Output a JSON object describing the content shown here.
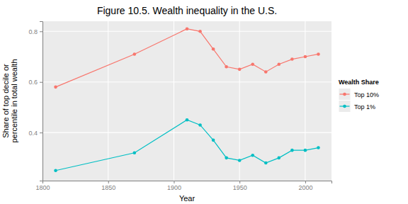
{
  "chart_data": {
    "type": "line",
    "title": "Figure 10.5. Wealth inequality in the U.S.",
    "x_label": "Year",
    "y_label": "Share of top decile or\npercentile in total wealth",
    "legend_title": "Wealth Share",
    "legend": "right",
    "grid": true,
    "marker": "circle",
    "x": [
      1810,
      1870,
      1910,
      1920,
      1930,
      1940,
      1950,
      1960,
      1970,
      1980,
      1990,
      2000,
      2010
    ],
    "series": [
      {
        "name": "Top 10%",
        "color": "#F8766D",
        "values": [
          0.58,
          0.71,
          0.81,
          0.8,
          0.73,
          0.66,
          0.65,
          0.67,
          0.64,
          0.67,
          0.69,
          0.7,
          0.71
        ]
      },
      {
        "name": "Top 1%",
        "color": "#00BFC4",
        "values": [
          0.25,
          0.32,
          0.45,
          0.43,
          0.37,
          0.3,
          0.29,
          0.31,
          0.28,
          0.3,
          0.33,
          0.33,
          0.34
        ]
      }
    ],
    "xlim": [
      1800,
      2020
    ],
    "xticks": [
      1800,
      1850,
      1900,
      1950,
      2000
    ],
    "ylim": [
      0.21,
      0.84
    ],
    "yticks": [
      0.4,
      0.6,
      0.8
    ]
  }
}
